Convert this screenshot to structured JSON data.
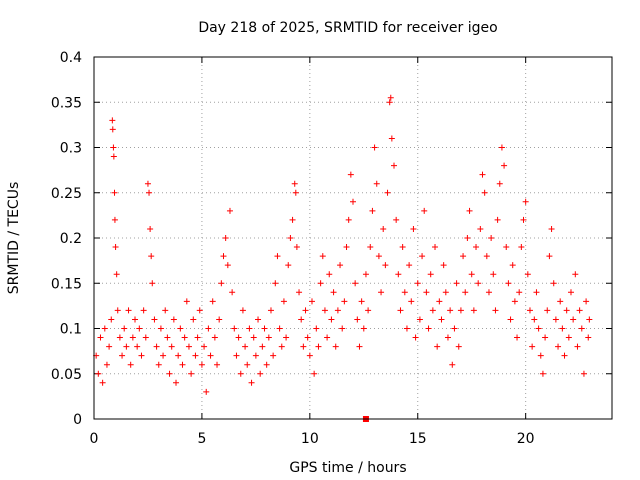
{
  "chart_data": {
    "type": "scatter",
    "title": "Day 218 of 2025, SRMTID for receiver igeo",
    "xlabel": "GPS time / hours",
    "ylabel": "SRMTID / TECUs",
    "xlim": [
      0,
      24
    ],
    "ylim": [
      0,
      0.4
    ],
    "x_ticks": [
      0,
      5,
      10,
      15,
      20
    ],
    "x_tick_labels": [
      "0",
      "5",
      "10",
      "15",
      "20"
    ],
    "y_ticks": [
      0,
      0.05,
      0.1,
      0.15,
      0.2,
      0.25,
      0.3,
      0.35,
      0.4
    ],
    "y_tick_labels": [
      "0",
      "0.05",
      "0.1",
      "0.15",
      "0.2",
      "0.25",
      "0.3",
      "0.35",
      "0.4"
    ],
    "grid": true,
    "marker": "plus",
    "color": "#ff0000",
    "series": [
      {
        "name": "SRMTID",
        "points": [
          [
            0.1,
            0.07
          ],
          [
            0.2,
            0.05
          ],
          [
            0.3,
            0.09
          ],
          [
            0.4,
            0.04
          ],
          [
            0.5,
            0.1
          ],
          [
            0.6,
            0.06
          ],
          [
            0.7,
            0.08
          ],
          [
            0.8,
            0.11
          ],
          [
            0.85,
            0.33
          ],
          [
            0.87,
            0.32
          ],
          [
            0.9,
            0.3
          ],
          [
            0.92,
            0.29
          ],
          [
            0.95,
            0.25
          ],
          [
            0.97,
            0.22
          ],
          [
            1.0,
            0.19
          ],
          [
            1.05,
            0.16
          ],
          [
            1.1,
            0.12
          ],
          [
            1.2,
            0.09
          ],
          [
            1.3,
            0.07
          ],
          [
            1.4,
            0.1
          ],
          [
            1.5,
            0.08
          ],
          [
            1.6,
            0.12
          ],
          [
            1.7,
            0.06
          ],
          [
            1.8,
            0.09
          ],
          [
            1.9,
            0.11
          ],
          [
            2.0,
            0.08
          ],
          [
            2.1,
            0.1
          ],
          [
            2.2,
            0.07
          ],
          [
            2.3,
            0.12
          ],
          [
            2.4,
            0.09
          ],
          [
            2.5,
            0.26
          ],
          [
            2.55,
            0.25
          ],
          [
            2.6,
            0.21
          ],
          [
            2.65,
            0.18
          ],
          [
            2.7,
            0.15
          ],
          [
            2.8,
            0.11
          ],
          [
            2.9,
            0.08
          ],
          [
            3.0,
            0.06
          ],
          [
            3.1,
            0.1
          ],
          [
            3.2,
            0.07
          ],
          [
            3.3,
            0.12
          ],
          [
            3.4,
            0.09
          ],
          [
            3.5,
            0.05
          ],
          [
            3.6,
            0.08
          ],
          [
            3.7,
            0.11
          ],
          [
            3.8,
            0.04
          ],
          [
            3.9,
            0.07
          ],
          [
            4.0,
            0.1
          ],
          [
            4.1,
            0.06
          ],
          [
            4.2,
            0.09
          ],
          [
            4.3,
            0.13
          ],
          [
            4.4,
            0.08
          ],
          [
            4.5,
            0.05
          ],
          [
            4.6,
            0.11
          ],
          [
            4.7,
            0.07
          ],
          [
            4.8,
            0.09
          ],
          [
            4.9,
            0.12
          ],
          [
            5.0,
            0.06
          ],
          [
            5.1,
            0.08
          ],
          [
            5.2,
            0.03
          ],
          [
            5.3,
            0.1
          ],
          [
            5.4,
            0.07
          ],
          [
            5.5,
            0.13
          ],
          [
            5.6,
            0.09
          ],
          [
            5.7,
            0.06
          ],
          [
            5.8,
            0.11
          ],
          [
            5.9,
            0.15
          ],
          [
            6.0,
            0.18
          ],
          [
            6.1,
            0.2
          ],
          [
            6.2,
            0.17
          ],
          [
            6.3,
            0.23
          ],
          [
            6.4,
            0.14
          ],
          [
            6.5,
            0.1
          ],
          [
            6.6,
            0.07
          ],
          [
            6.7,
            0.09
          ],
          [
            6.8,
            0.05
          ],
          [
            6.9,
            0.12
          ],
          [
            7.0,
            0.08
          ],
          [
            7.1,
            0.06
          ],
          [
            7.2,
            0.1
          ],
          [
            7.3,
            0.04
          ],
          [
            7.4,
            0.09
          ],
          [
            7.5,
            0.07
          ],
          [
            7.6,
            0.11
          ],
          [
            7.7,
            0.05
          ],
          [
            7.8,
            0.08
          ],
          [
            7.9,
            0.1
          ],
          [
            8.0,
            0.06
          ],
          [
            8.1,
            0.09
          ],
          [
            8.2,
            0.12
          ],
          [
            8.3,
            0.07
          ],
          [
            8.4,
            0.15
          ],
          [
            8.5,
            0.18
          ],
          [
            8.6,
            0.1
          ],
          [
            8.7,
            0.08
          ],
          [
            8.8,
            0.13
          ],
          [
            8.9,
            0.09
          ],
          [
            9.0,
            0.17
          ],
          [
            9.1,
            0.2
          ],
          [
            9.2,
            0.22
          ],
          [
            9.3,
            0.26
          ],
          [
            9.35,
            0.25
          ],
          [
            9.4,
            0.19
          ],
          [
            9.5,
            0.14
          ],
          [
            9.6,
            0.11
          ],
          [
            9.7,
            0.08
          ],
          [
            9.8,
            0.12
          ],
          [
            9.9,
            0.09
          ],
          [
            10.0,
            0.07
          ],
          [
            10.1,
            0.13
          ],
          [
            10.2,
            0.05
          ],
          [
            10.3,
            0.1
          ],
          [
            10.4,
            0.08
          ],
          [
            10.5,
            0.15
          ],
          [
            10.6,
            0.18
          ],
          [
            10.7,
            0.12
          ],
          [
            10.8,
            0.09
          ],
          [
            10.9,
            0.16
          ],
          [
            11.0,
            0.11
          ],
          [
            11.1,
            0.14
          ],
          [
            11.2,
            0.08
          ],
          [
            11.3,
            0.12
          ],
          [
            11.4,
            0.17
          ],
          [
            11.5,
            0.1
          ],
          [
            11.6,
            0.13
          ],
          [
            11.7,
            0.19
          ],
          [
            11.8,
            0.22
          ],
          [
            11.9,
            0.27
          ],
          [
            12.0,
            0.24
          ],
          [
            12.1,
            0.15
          ],
          [
            12.2,
            0.11
          ],
          [
            12.3,
            0.08
          ],
          [
            12.4,
            0.13
          ],
          [
            12.5,
            0.1
          ],
          [
            12.6,
            0.16
          ],
          [
            12.7,
            0.12
          ],
          [
            12.8,
            0.19
          ],
          [
            12.9,
            0.23
          ],
          [
            13.0,
            0.3
          ],
          [
            13.1,
            0.26
          ],
          [
            13.2,
            0.18
          ],
          [
            13.3,
            0.14
          ],
          [
            13.4,
            0.21
          ],
          [
            13.5,
            0.17
          ],
          [
            13.6,
            0.25
          ],
          [
            13.7,
            0.35
          ],
          [
            13.75,
            0.355
          ],
          [
            13.8,
            0.31
          ],
          [
            13.9,
            0.28
          ],
          [
            14.0,
            0.22
          ],
          [
            14.1,
            0.16
          ],
          [
            14.2,
            0.12
          ],
          [
            14.3,
            0.19
          ],
          [
            14.4,
            0.14
          ],
          [
            14.5,
            0.1
          ],
          [
            14.6,
            0.17
          ],
          [
            14.7,
            0.13
          ],
          [
            14.8,
            0.21
          ],
          [
            14.9,
            0.09
          ],
          [
            15.0,
            0.15
          ],
          [
            15.1,
            0.11
          ],
          [
            15.2,
            0.18
          ],
          [
            15.3,
            0.23
          ],
          [
            15.4,
            0.14
          ],
          [
            15.5,
            0.1
          ],
          [
            15.6,
            0.16
          ],
          [
            15.7,
            0.12
          ],
          [
            15.8,
            0.19
          ],
          [
            15.9,
            0.08
          ],
          [
            16.0,
            0.13
          ],
          [
            16.1,
            0.11
          ],
          [
            16.2,
            0.17
          ],
          [
            16.3,
            0.14
          ],
          [
            16.4,
            0.09
          ],
          [
            16.5,
            0.12
          ],
          [
            16.6,
            0.06
          ],
          [
            16.7,
            0.1
          ],
          [
            16.8,
            0.15
          ],
          [
            16.9,
            0.08
          ],
          [
            17.0,
            0.12
          ],
          [
            17.1,
            0.18
          ],
          [
            17.2,
            0.14
          ],
          [
            17.3,
            0.2
          ],
          [
            17.4,
            0.23
          ],
          [
            17.5,
            0.16
          ],
          [
            17.6,
            0.12
          ],
          [
            17.7,
            0.19
          ],
          [
            17.8,
            0.15
          ],
          [
            17.9,
            0.21
          ],
          [
            18.0,
            0.27
          ],
          [
            18.1,
            0.25
          ],
          [
            18.2,
            0.18
          ],
          [
            18.3,
            0.14
          ],
          [
            18.4,
            0.2
          ],
          [
            18.5,
            0.16
          ],
          [
            18.6,
            0.12
          ],
          [
            18.7,
            0.22
          ],
          [
            18.8,
            0.26
          ],
          [
            18.9,
            0.3
          ],
          [
            19.0,
            0.28
          ],
          [
            19.1,
            0.19
          ],
          [
            19.2,
            0.15
          ],
          [
            19.3,
            0.11
          ],
          [
            19.4,
            0.17
          ],
          [
            19.5,
            0.13
          ],
          [
            19.6,
            0.09
          ],
          [
            19.7,
            0.14
          ],
          [
            19.8,
            0.19
          ],
          [
            19.9,
            0.22
          ],
          [
            20.0,
            0.24
          ],
          [
            20.1,
            0.16
          ],
          [
            20.2,
            0.12
          ],
          [
            20.3,
            0.08
          ],
          [
            20.4,
            0.11
          ],
          [
            20.5,
            0.14
          ],
          [
            20.6,
            0.1
          ],
          [
            20.7,
            0.07
          ],
          [
            20.8,
            0.05
          ],
          [
            20.9,
            0.09
          ],
          [
            21.0,
            0.12
          ],
          [
            21.1,
            0.18
          ],
          [
            21.2,
            0.21
          ],
          [
            21.3,
            0.15
          ],
          [
            21.4,
            0.11
          ],
          [
            21.5,
            0.08
          ],
          [
            21.6,
            0.13
          ],
          [
            21.7,
            0.1
          ],
          [
            21.8,
            0.07
          ],
          [
            21.9,
            0.12
          ],
          [
            22.0,
            0.09
          ],
          [
            22.1,
            0.14
          ],
          [
            22.2,
            0.11
          ],
          [
            22.3,
            0.16
          ],
          [
            22.4,
            0.08
          ],
          [
            22.5,
            0.12
          ],
          [
            22.6,
            0.1
          ],
          [
            22.7,
            0.05
          ],
          [
            22.8,
            0.13
          ],
          [
            22.9,
            0.09
          ],
          [
            22.95,
            0.11
          ]
        ]
      }
    ],
    "annotation_marker": {
      "shape": "square",
      "x": 12.6,
      "y": 0
    }
  }
}
